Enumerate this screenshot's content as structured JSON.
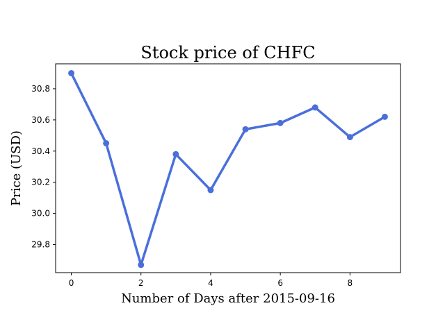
{
  "chart_data": {
    "type": "line",
    "title": "Stock price of CHFC",
    "xlabel": "Number of Days after 2015-09-16",
    "ylabel": "Price (USD)",
    "x": [
      0,
      1,
      2,
      3,
      4,
      5,
      6,
      7,
      8,
      9
    ],
    "series": [
      {
        "values": [
          30.9,
          30.45,
          29.67,
          30.38,
          30.15,
          30.54,
          30.58,
          30.68,
          30.49,
          30.62
        ],
        "color": "#4a6fdb"
      }
    ],
    "xlim": [
      -0.45,
      9.45
    ],
    "ylim": [
      29.62,
      30.96
    ],
    "xticks": [
      0,
      2,
      4,
      6,
      8
    ],
    "yticks": [
      29.8,
      30.0,
      30.2,
      30.4,
      30.6,
      30.8
    ],
    "xtick_labels": [
      "0",
      "2",
      "4",
      "6",
      "8"
    ],
    "ytick_labels": [
      "29.8",
      "30.0",
      "30.2",
      "30.4",
      "30.6",
      "30.8"
    ],
    "grid": false,
    "markers": true
  }
}
